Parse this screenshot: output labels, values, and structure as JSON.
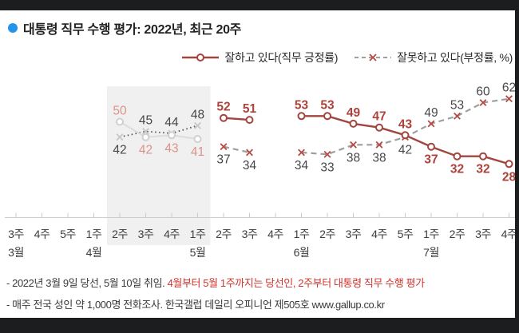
{
  "title": {
    "text": "대통령 직무 수행 평가: 2022년, 최근 20주",
    "bullet_color": "#2196e8"
  },
  "legend": [
    {
      "label": "잘하고 있다(직무 긍정률)"
    },
    {
      "label": "잘못하고 있다(부정률, %)"
    }
  ],
  "chart_data": {
    "type": "line",
    "title": "대통령 직무 수행 평가: 2022년, 최근 20주",
    "legend_position": "top-right",
    "grid": false,
    "ylim": [
      0,
      70
    ],
    "axis_color": "#cccccc",
    "tick_label_color": "#3d3d3d",
    "x_ticks": [
      "3주",
      "4주",
      "5주",
      "1주",
      "2주",
      "3주",
      "4주",
      "1주",
      "2주",
      "3주",
      "4주",
      "1주",
      "2주",
      "3주",
      "4주",
      "5주",
      "1주",
      "2주",
      "3주",
      "4주"
    ],
    "months": [
      {
        "label": "3월",
        "tick_index": 0
      },
      {
        "label": "4월",
        "tick_index": 3
      },
      {
        "label": "5월",
        "tick_index": 7
      },
      {
        "label": "6월",
        "tick_index": 11
      },
      {
        "label": "7월",
        "tick_index": 16
      }
    ],
    "candidate_period": {
      "start_index": 4,
      "end_index": 7,
      "fill": "#f0f0f0"
    },
    "series": [
      {
        "name": "잘하고 있다(직무 긍정률)",
        "marker": "circle",
        "normal": {
          "line": "#a2453f",
          "width": 2.4,
          "dash": null,
          "marker": "#a2453f",
          "label": "#ad423b",
          "label_weight": 700
        },
        "candidate": {
          "line": "#dcdcdc",
          "width": 2,
          "dash": null,
          "marker": "#cfcfcf",
          "label": "#dd9289",
          "label_weight": 400
        },
        "values": [
          null,
          null,
          null,
          null,
          50,
          42,
          43,
          41,
          52,
          51,
          null,
          53,
          53,
          49,
          47,
          43,
          37,
          32,
          32,
          28
        ]
      },
      {
        "name": "잘못하고 있다(부정률, %)",
        "marker": "x",
        "normal": {
          "line": "#9e9e9e",
          "width": 2.2,
          "dash": "7 5",
          "marker": "#b54a42",
          "label": "#484848",
          "label_weight": 500
        },
        "candidate": {
          "line": "#4f4f4f",
          "width": 1.8,
          "dash": "1.5 3.5",
          "marker": "#c6c6c6",
          "label": "#484848",
          "label_weight": 500
        },
        "values": [
          null,
          null,
          null,
          null,
          42,
          45,
          44,
          48,
          37,
          34,
          null,
          34,
          33,
          38,
          38,
          42,
          49,
          53,
          60,
          62
        ]
      }
    ]
  },
  "footnotes": {
    "line1_normal": "- 2022년 3월 9일 당선, 5월 10일 취임. ",
    "line1_red": "4월부터 5월 1주까지는 당선인, 2주부터 대통령 직무 수행 평가",
    "line2": "- 매주 전국 성인 약 1,000명 전화조사. 한국갤럽 데일리 오피니언 제505호 www.gallup.co.kr"
  }
}
